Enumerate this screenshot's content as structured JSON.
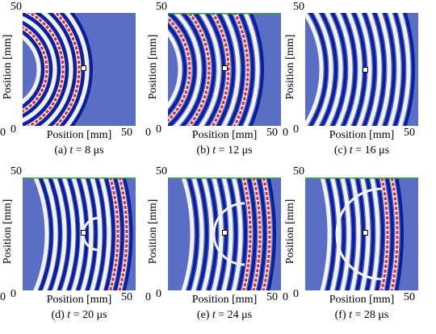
{
  "axes": {
    "xlabel": "Position [mm]",
    "ylabel": "Position [mm]",
    "tick_min": "0",
    "tick_max": "50"
  },
  "colors": {
    "background": "#5a6fc4",
    "negative": "#0a1f9c",
    "positive": "#e2262f",
    "neutral": "#f3f3f6"
  },
  "panels": [
    {
      "letter": "(a)",
      "tvar": "t",
      "value": "= 8 μs"
    },
    {
      "letter": "(b)",
      "tvar": "t",
      "value": "= 12 μs"
    },
    {
      "letter": "(c)",
      "tvar": "t",
      "value": "= 16 μs"
    },
    {
      "letter": "(d)",
      "tvar": "t",
      "value": "= 20 μs"
    },
    {
      "letter": "(e)",
      "tvar": "t",
      "value": "= 24 μs"
    },
    {
      "letter": "(f)",
      "tvar": "t",
      "value": "= 28 μs"
    }
  ]
}
